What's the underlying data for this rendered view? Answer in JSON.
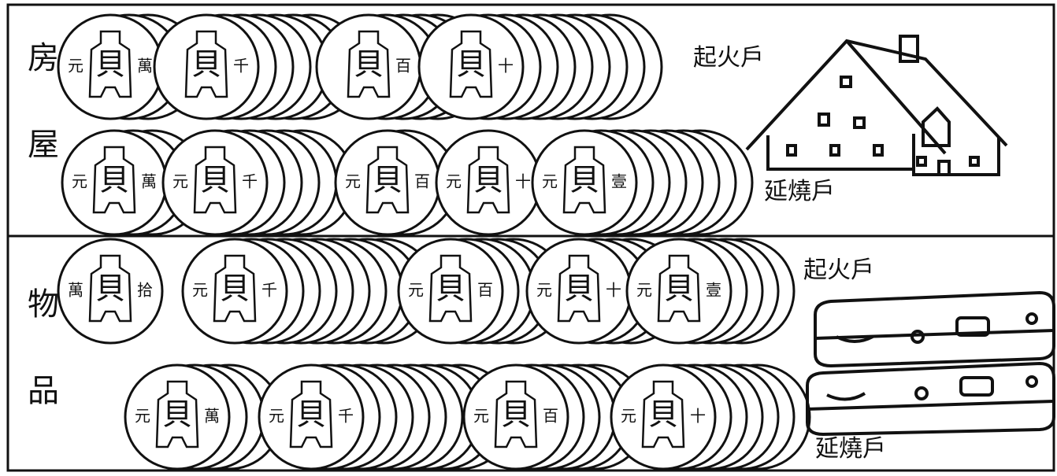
{
  "sections": [
    {
      "label": "房屋",
      "fire_origin": "起火戶",
      "spread": "延燒戶",
      "rows": [
        [
          {
            "left": "元",
            "center": "貝",
            "right": "萬"
          },
          {
            "center": "貝",
            "right": "千"
          },
          {
            "center": "貝",
            "right": "百"
          },
          {
            "center": "貝",
            "right": "十"
          }
        ],
        [
          {
            "left": "元",
            "center": "貝",
            "right": "萬"
          },
          {
            "left": "元",
            "center": "貝",
            "right": "千"
          },
          {
            "left": "元",
            "center": "貝",
            "right": "百"
          },
          {
            "left": "元",
            "center": "貝",
            "right": "十"
          },
          {
            "left": "元",
            "center": "貝",
            "right": "壹"
          }
        ]
      ]
    },
    {
      "label": "物品",
      "fire_origin": "起火戶",
      "spread": "延燒戶",
      "rows": [
        [
          {
            "left": "萬",
            "center": "貝",
            "right": "拾"
          },
          {
            "left": "元",
            "center": "貝",
            "right": "千"
          },
          {
            "left": "元",
            "center": "貝",
            "right": "百"
          },
          {
            "left": "元",
            "center": "貝",
            "right": "十"
          },
          {
            "left": "元",
            "center": "貝",
            "right": "壹"
          }
        ],
        [
          {
            "left": "元",
            "center": "貝",
            "right": "萬"
          },
          {
            "left": "元",
            "center": "貝",
            "right": "千"
          },
          {
            "left": "元",
            "center": "貝",
            "right": "百"
          },
          {
            "left": "元",
            "center": "貝",
            "right": "十"
          }
        ]
      ]
    }
  ]
}
